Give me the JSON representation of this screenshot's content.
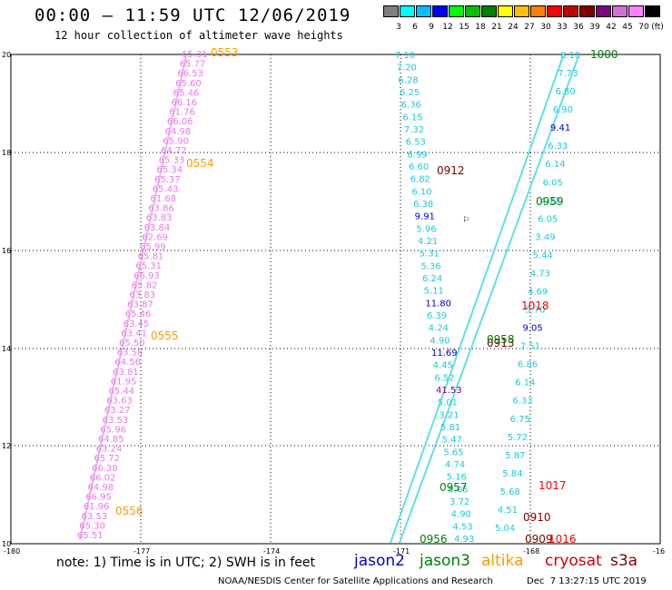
{
  "title": "00:00 — 11:59 UTC 12/06/2019",
  "subtitle": "12 hour collection of altimeter wave heights",
  "colorbar": {
    "unit": "(ft)",
    "labels": [
      "3",
      "6",
      "9",
      "12",
      "15",
      "18",
      "21",
      "24",
      "27",
      "30",
      "33",
      "36",
      "39",
      "42",
      "45",
      "70"
    ],
    "colors": [
      "#7f7f7f",
      "#00ffff",
      "#00bfff",
      "#0000ff",
      "#00ff00",
      "#00c000",
      "#008000",
      "#ffff00",
      "#ffc000",
      "#ff8000",
      "#ff0000",
      "#c00000",
      "#800000",
      "#800080",
      "#d070d0",
      "#ff80ff",
      "#000000"
    ]
  },
  "axes": {
    "lon_ticks": [
      "-180",
      "-177",
      "-174",
      "-171",
      "-168",
      "-16"
    ],
    "lat_ticks": [
      "20",
      "18",
      "16",
      "14",
      "12",
      "10"
    ]
  },
  "legend": {
    "note": "note: 1) Time is in UTC; 2) SWH is in feet",
    "satellites": [
      {
        "name": "jason2",
        "color": "#0000cc"
      },
      {
        "name": "jason3",
        "color": "#008000"
      },
      {
        "name": "altika",
        "color": "#ff9900"
      },
      {
        "name": "cryosat",
        "color": "#cc0000"
      },
      {
        "name": "s3a",
        "color": "#800000"
      }
    ]
  },
  "footer": {
    "credit": "NOAA/NESDIS Center for Satellite Applications and Research",
    "generated": "Dec  7 13:27:15 UTC 2019"
  },
  "time_labels": [
    {
      "text": "0553",
      "color": "#ff9900"
    },
    {
      "text": "0554",
      "color": "#ff9900"
    },
    {
      "text": "0555",
      "color": "#ff9900"
    },
    {
      "text": "0556",
      "color": "#ff9900"
    },
    {
      "text": "0912",
      "color": "#800000"
    },
    {
      "text": "0913",
      "color": "#800000"
    },
    {
      "text": "0910",
      "color": "#800000"
    },
    {
      "text": "0909",
      "color": "#800000"
    },
    {
      "text": "0958",
      "color": "#008000"
    },
    {
      "text": "0959",
      "color": "#008000"
    },
    {
      "text": "0957",
      "color": "#008000"
    },
    {
      "text": "0956",
      "color": "#008000"
    },
    {
      "text": "1000",
      "color": "#008000"
    },
    {
      "text": "1018",
      "color": "#ff0000"
    },
    {
      "text": "1017",
      "color": "#ff0000"
    },
    {
      "text": "1016",
      "color": "#ff0000"
    }
  ],
  "wave_values": {
    "cyan_left": [
      "7.10",
      "7.20",
      "6.28",
      "6.25",
      "6.36",
      "6.15",
      "7.32",
      "6.53",
      "6.99",
      "6.60",
      "6.82",
      "6.10",
      "6.38",
      "9.91",
      "5.96",
      "4.21",
      "5.31",
      "5.36",
      "6.24",
      "5.11",
      "11.80",
      "6.39",
      "4.24",
      "4.90",
      "11.69",
      "4.45",
      "6.52",
      "41.53",
      "5.01",
      "3.21",
      "5.81",
      "5.47",
      "5.65",
      "4.74",
      "5.16",
      "5.05",
      "3.72",
      "4.90",
      "4.53",
      "4.93"
    ],
    "cyan_right": [
      "8.10",
      "7.73",
      "6.80",
      "6.90",
      "9.41",
      "6.33",
      "6.14",
      "6.05",
      "4.22",
      "6.05",
      "3.49",
      "5.44",
      "4.73",
      "4.69",
      "5.70",
      "9.05",
      "7.51",
      "6.86",
      "6.14",
      "6.33",
      "6.75",
      "5.72",
      "5.87",
      "5.84",
      "5.68",
      "4.51",
      "5.04"
    ],
    "pink": [
      "65.31",
      "65.77",
      "66.53",
      "65.60",
      "65.46",
      "66.16",
      "61.76",
      "66.06",
      "64.98",
      "65.90",
      "64.72",
      "65.33",
      "65.34",
      "65.37",
      "65.43",
      "61.68",
      "63.86",
      "63.83",
      "63.84",
      "62.69",
      "65.99",
      "65.81",
      "65.31",
      "66.93",
      "65.82",
      "63.83",
      "63.87",
      "65.46",
      "63.45",
      "63.41",
      "65.50",
      "63.58",
      "64.56",
      "63.81",
      "61.95",
      "65.44",
      "63.63",
      "63.27",
      "63.53",
      "65.96",
      "64.85",
      "63.24",
      "65.72",
      "66.38",
      "66.02",
      "64.98",
      "66.95",
      "61.96",
      "63.53",
      "65.30",
      "65.51"
    ]
  }
}
